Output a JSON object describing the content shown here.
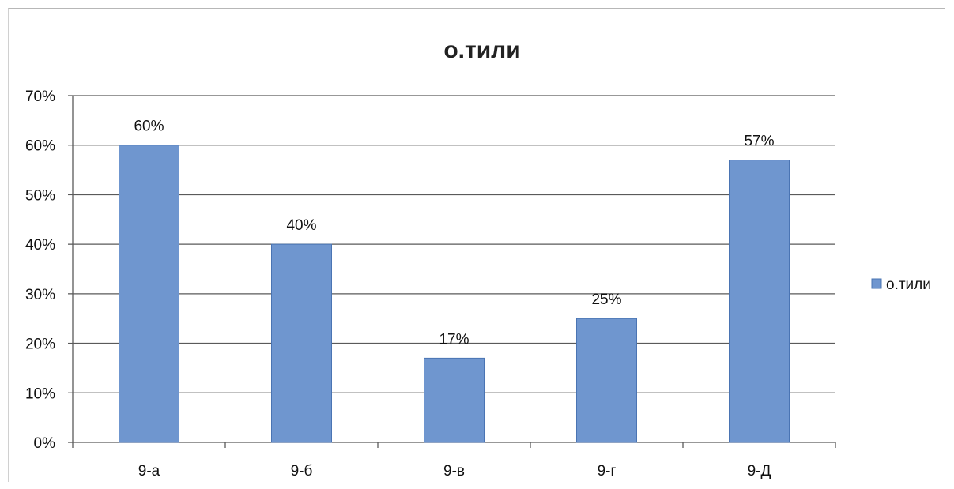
{
  "chart_data": {
    "type": "bar",
    "title": "о.тили",
    "categories": [
      "9-а",
      "9-б",
      "9-в",
      "9-г",
      "9-Д"
    ],
    "series": [
      {
        "name": "о.тили",
        "values": [
          60,
          40,
          17,
          25,
          57
        ],
        "labels": [
          "60%",
          "40%",
          "17%",
          "25%",
          "57%"
        ],
        "color": "#6f96cf"
      }
    ],
    "y_ticks": [
      "0%",
      "10%",
      "20%",
      "30%",
      "40%",
      "50%",
      "60%",
      "70%"
    ],
    "ylim": [
      0,
      70
    ],
    "y_unit": "%",
    "grid": true,
    "legend_position": "right"
  }
}
